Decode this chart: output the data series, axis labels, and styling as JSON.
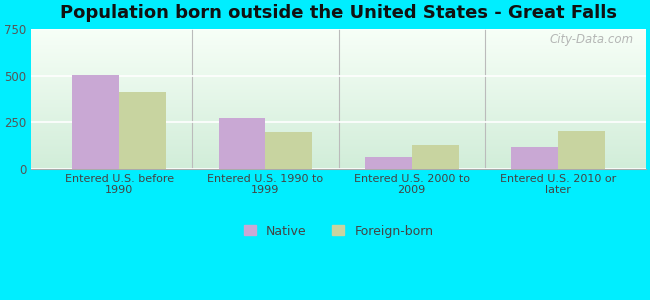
{
  "title": "Population born outside the United States - Great Falls",
  "categories": [
    "Entered U.S. before\n1990",
    "Entered U.S. 1990 to\n1999",
    "Entered U.S. 2000 to\n2009",
    "Entered U.S. 2010 or\nlater"
  ],
  "native_values": [
    502,
    270,
    62,
    118
  ],
  "foreign_values": [
    415,
    195,
    128,
    200
  ],
  "native_color": "#c9a8d4",
  "foreign_color": "#c8d4a0",
  "bar_width": 0.32,
  "ylim": [
    0,
    750
  ],
  "yticks": [
    0,
    250,
    500,
    750
  ],
  "outer_background": "#00eeff",
  "title_fontsize": 13,
  "watermark": "City-Data.com",
  "legend_labels": [
    "Native",
    "Foreign-born"
  ],
  "bg_gradient_top": "#e8f5e0",
  "bg_gradient_bottom": "#d0ede0",
  "separator_color": "#bbbbbb"
}
